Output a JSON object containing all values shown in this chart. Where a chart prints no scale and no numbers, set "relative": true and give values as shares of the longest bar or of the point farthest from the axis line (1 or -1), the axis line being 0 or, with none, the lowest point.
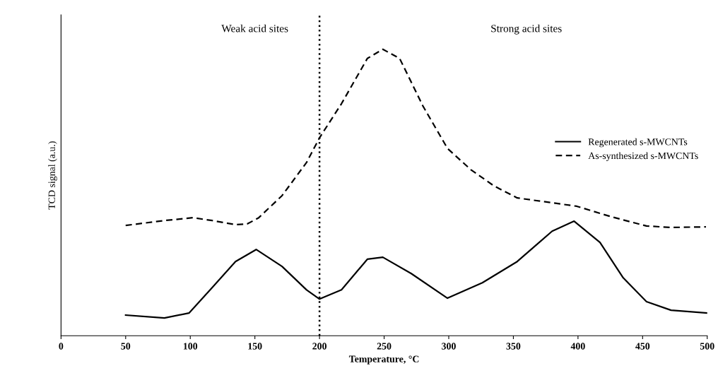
{
  "chart_data": {
    "type": "line",
    "relative": true,
    "xlabel": "Temperature, °C",
    "ylabel": "TCD signal (a.u.)",
    "xlim": [
      0,
      500
    ],
    "xticks": [
      0,
      50,
      100,
      150,
      200,
      250,
      300,
      350,
      400,
      450,
      500
    ],
    "annotations": [
      "Weak acid sites",
      "Strong acid sites"
    ],
    "ref_lines": [
      {
        "axis": "x",
        "value": 200,
        "line_style": "dotted",
        "color": "#000000"
      }
    ],
    "legend": "right",
    "grid": false,
    "series": [
      {
        "name": "Regenerated s-MWCNTs",
        "color": "#000000",
        "line_style": "solid",
        "x": [
          50,
          80,
          99,
          117,
          135,
          151,
          171,
          190,
          200,
          217,
          237,
          249,
          271,
          299,
          326,
          353,
          380,
          397,
          417,
          435,
          453,
          472,
          500
        ],
        "values": [
          0.072,
          0.062,
          0.079,
          0.168,
          0.259,
          0.301,
          0.242,
          0.16,
          0.128,
          0.16,
          0.267,
          0.274,
          0.217,
          0.131,
          0.185,
          0.259,
          0.365,
          0.4,
          0.326,
          0.202,
          0.119,
          0.089,
          0.079
        ]
      },
      {
        "name": "As-synthesized s-MWCNTs",
        "color": "#000000",
        "line_style": "dashed",
        "x": [
          50,
          80,
          102,
          117,
          135,
          144,
          153,
          171,
          190,
          200,
          217,
          237,
          249,
          262,
          280,
          299,
          317,
          335,
          353,
          380,
          399,
          426,
          453,
          472,
          499
        ],
        "values": [
          0.385,
          0.402,
          0.412,
          0.402,
          0.388,
          0.39,
          0.412,
          0.489,
          0.605,
          0.691,
          0.81,
          0.968,
          1,
          0.968,
          0.802,
          0.654,
          0.58,
          0.523,
          0.481,
          0.464,
          0.452,
          0.415,
          0.383,
          0.378,
          0.38
        ]
      }
    ]
  }
}
